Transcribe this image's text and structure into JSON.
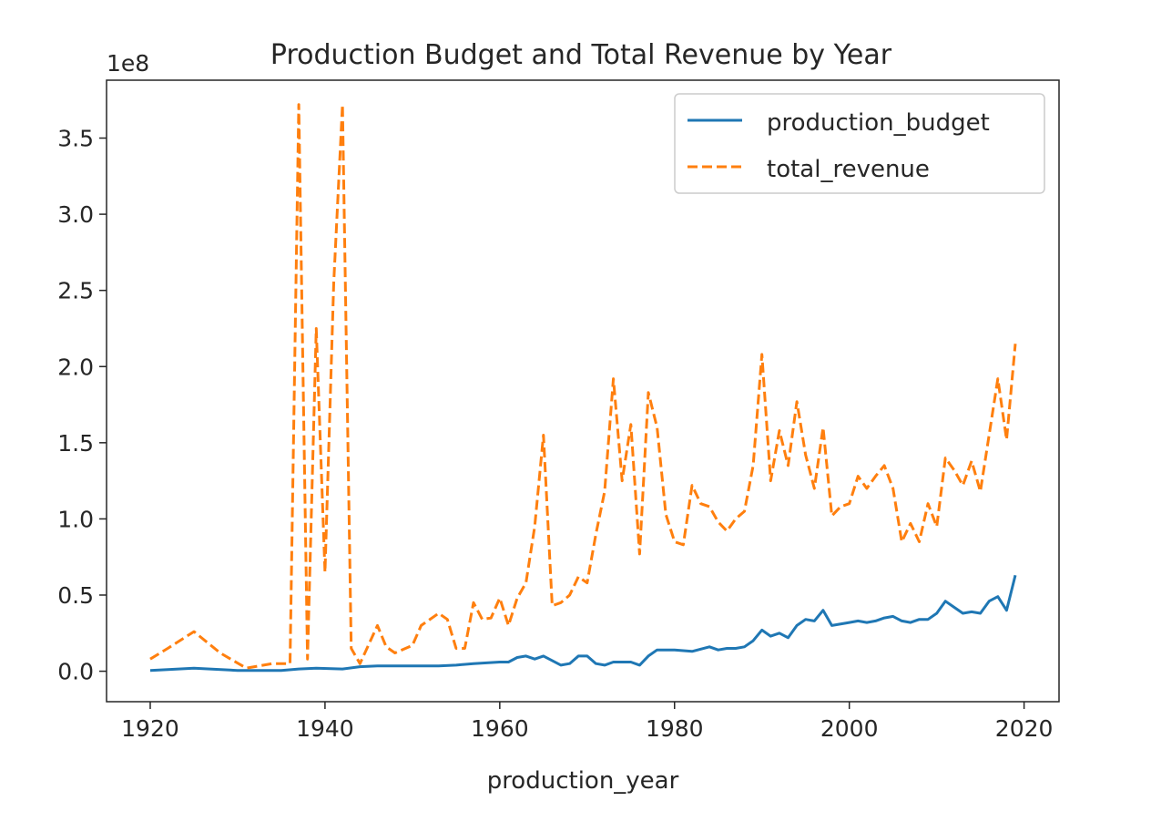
{
  "chart_data": {
    "type": "line",
    "title": "Production Budget and Total Revenue by Year",
    "xlabel": "production_year",
    "ylabel": "",
    "y_offset_label": "1e8",
    "xlim": [
      1915,
      2024
    ],
    "ylim": [
      -0.2,
      3.88
    ],
    "y_scale_factor": 100000000,
    "x_ticks": [
      1920,
      1940,
      1960,
      1980,
      2000,
      2020
    ],
    "x_tick_labels": [
      "1920",
      "1940",
      "1960",
      "1980",
      "2000",
      "2020"
    ],
    "y_ticks": [
      0.0,
      0.5,
      1.0,
      1.5,
      2.0,
      2.5,
      3.0,
      3.5
    ],
    "y_tick_labels": [
      "0.0",
      "0.5",
      "1.0",
      "1.5",
      "2.0",
      "2.5",
      "3.0",
      "3.5"
    ],
    "grid": false,
    "legend_position": "top-right",
    "series": [
      {
        "name": "production_budget",
        "color": "#1f77b4",
        "dash": "solid",
        "x": [
          1920,
          1925,
          1930,
          1935,
          1937,
          1939,
          1942,
          1944,
          1946,
          1948,
          1950,
          1953,
          1955,
          1957,
          1960,
          1961,
          1962,
          1963,
          1964,
          1965,
          1966,
          1967,
          1968,
          1969,
          1970,
          1971,
          1972,
          1973,
          1974,
          1975,
          1976,
          1977,
          1978,
          1980,
          1982,
          1984,
          1985,
          1986,
          1987,
          1988,
          1989,
          1990,
          1991,
          1992,
          1993,
          1994,
          1995,
          1996,
          1997,
          1998,
          2000,
          2001,
          2002,
          2003,
          2004,
          2005,
          2006,
          2007,
          2008,
          2009,
          2010,
          2011,
          2012,
          2013,
          2014,
          2015,
          2016,
          2017,
          2018,
          2019
        ],
        "values": [
          0.005,
          0.02,
          0.005,
          0.005,
          0.015,
          0.02,
          0.015,
          0.03,
          0.035,
          0.035,
          0.035,
          0.035,
          0.04,
          0.05,
          0.06,
          0.06,
          0.09,
          0.1,
          0.08,
          0.1,
          0.07,
          0.04,
          0.05,
          0.1,
          0.1,
          0.05,
          0.04,
          0.06,
          0.06,
          0.06,
          0.04,
          0.1,
          0.14,
          0.14,
          0.13,
          0.16,
          0.14,
          0.15,
          0.15,
          0.16,
          0.2,
          0.27,
          0.23,
          0.25,
          0.22,
          0.3,
          0.34,
          0.33,
          0.4,
          0.3,
          0.32,
          0.33,
          0.32,
          0.33,
          0.35,
          0.36,
          0.33,
          0.32,
          0.34,
          0.34,
          0.38,
          0.46,
          0.42,
          0.38,
          0.39,
          0.38,
          0.46,
          0.49,
          0.4,
          0.63
        ]
      },
      {
        "name": "total_revenue",
        "color": "#ff7f0e",
        "dash": "dashed",
        "x": [
          1920,
          1922,
          1925,
          1928,
          1931,
          1934,
          1936,
          1937,
          1938,
          1939,
          1940,
          1941,
          1942,
          1943,
          1944,
          1946,
          1947,
          1948,
          1950,
          1951,
          1953,
          1954,
          1955,
          1956,
          1957,
          1958,
          1959,
          1960,
          1961,
          1962,
          1963,
          1964,
          1965,
          1966,
          1967,
          1968,
          1969,
          1970,
          1971,
          1972,
          1973,
          1974,
          1975,
          1976,
          1977,
          1978,
          1979,
          1980,
          1981,
          1982,
          1983,
          1984,
          1985,
          1986,
          1987,
          1988,
          1989,
          1990,
          1991,
          1992,
          1993,
          1994,
          1995,
          1996,
          1997,
          1998,
          1999,
          2000,
          2001,
          2002,
          2003,
          2004,
          2005,
          2006,
          2007,
          2008,
          2009,
          2010,
          2011,
          2012,
          2013,
          2014,
          2015,
          2016,
          2017,
          2018,
          2019
        ],
        "values": [
          0.08,
          0.15,
          0.26,
          0.12,
          0.02,
          0.05,
          0.05,
          3.72,
          0.08,
          2.25,
          0.65,
          2.55,
          3.72,
          0.15,
          0.05,
          0.3,
          0.16,
          0.12,
          0.17,
          0.3,
          0.38,
          0.34,
          0.15,
          0.15,
          0.45,
          0.34,
          0.35,
          0.48,
          0.3,
          0.48,
          0.58,
          0.95,
          1.55,
          0.43,
          0.45,
          0.5,
          0.62,
          0.58,
          0.9,
          1.18,
          1.92,
          1.25,
          1.62,
          0.77,
          1.83,
          1.6,
          1.03,
          0.85,
          0.83,
          1.22,
          1.1,
          1.08,
          0.98,
          0.92,
          1.0,
          1.05,
          1.35,
          2.08,
          1.25,
          1.58,
          1.35,
          1.77,
          1.42,
          1.2,
          1.6,
          1.02,
          1.08,
          1.1,
          1.28,
          1.2,
          1.28,
          1.35,
          1.2,
          0.85,
          0.97,
          0.85,
          1.1,
          0.95,
          1.4,
          1.32,
          1.22,
          1.38,
          1.18,
          1.55,
          1.92,
          1.52,
          2.15
        ]
      }
    ]
  }
}
